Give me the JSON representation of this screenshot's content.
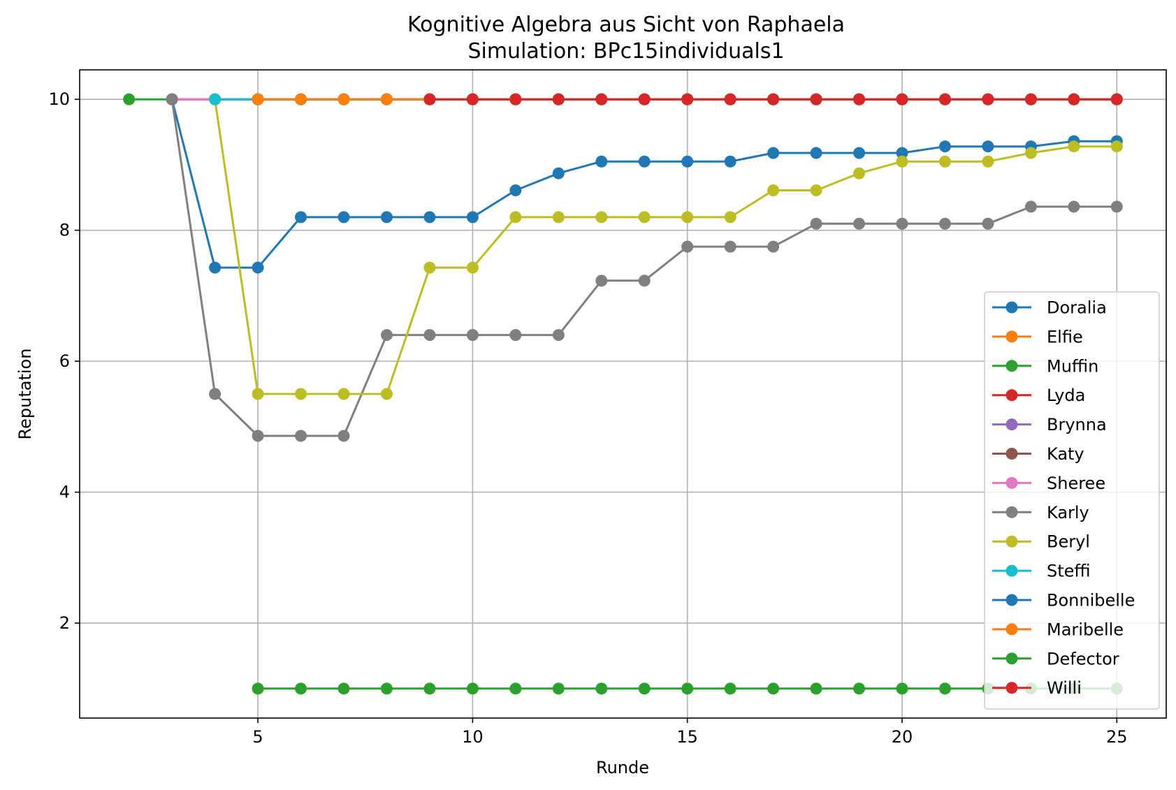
{
  "chart_data": {
    "type": "line",
    "title": "Kognitive Algebra aus Sicht von Raphaela",
    "subtitle": "Simulation: BPc15individuals1",
    "xlabel": "Runde",
    "ylabel": "Reputation",
    "xlim": [
      0.85,
      26.15
    ],
    "ylim": [
      0.55,
      10.45
    ],
    "xticks": [
      5,
      10,
      15,
      20,
      25
    ],
    "yticks": [
      2,
      4,
      6,
      8,
      10
    ],
    "grid": true,
    "legend_position": "lower-right",
    "series": [
      {
        "name": "Doralia",
        "color": "#1f77b4",
        "x": [
          3,
          4,
          5,
          6,
          7,
          8,
          9,
          10,
          11,
          12,
          13,
          14,
          15,
          16,
          17,
          18,
          19,
          20,
          21,
          22,
          23,
          24,
          25
        ],
        "y": [
          10,
          7.43,
          7.43,
          8.2,
          8.2,
          8.2,
          8.2,
          8.2,
          8.61,
          8.87,
          9.05,
          9.05,
          9.05,
          9.05,
          9.18,
          9.18,
          9.18,
          9.18,
          9.28,
          9.28,
          9.28,
          9.36,
          9.36
        ]
      },
      {
        "name": "Elfie",
        "color": "#ff7f0e",
        "x": [
          5,
          6,
          7,
          8,
          9,
          10,
          11,
          12,
          13,
          14,
          15,
          16,
          17,
          18,
          19,
          20,
          21,
          22,
          23,
          24,
          25
        ],
        "y": [
          10,
          10,
          10,
          10,
          10,
          10,
          10,
          10,
          10,
          10,
          10,
          10,
          10,
          10,
          10,
          10,
          10,
          10,
          10,
          10,
          10
        ]
      },
      {
        "name": "Muffin",
        "color": "#2ca02c",
        "x": [
          2,
          3
        ],
        "y": [
          10,
          10
        ]
      },
      {
        "name": "Lyda",
        "color": "#d62728",
        "x": [
          9,
          10,
          11,
          12,
          13,
          14,
          15,
          16,
          17,
          18,
          19,
          20,
          21,
          22,
          23,
          24,
          25
        ],
        "y": [
          10,
          10,
          10,
          10,
          10,
          10,
          10,
          10,
          10,
          10,
          10,
          10,
          10,
          10,
          10,
          10,
          10
        ]
      },
      {
        "name": "Brynna",
        "color": "#9467bd",
        "x": [
          3,
          4,
          5,
          6,
          7,
          8,
          9,
          10,
          11,
          12,
          13,
          14,
          15,
          16,
          17,
          18,
          19,
          20,
          21,
          22,
          23,
          24,
          25
        ],
        "y": [
          10,
          10,
          10,
          10,
          10,
          10,
          10,
          10,
          10,
          10,
          10,
          10,
          10,
          10,
          10,
          10,
          10,
          10,
          10,
          10,
          10,
          10,
          10
        ]
      },
      {
        "name": "Katy",
        "color": "#8c564b",
        "x": [
          3,
          4,
          5,
          6,
          7,
          8,
          9,
          10,
          11,
          12,
          13,
          14,
          15,
          16,
          17,
          18,
          19,
          20,
          21,
          22,
          23,
          24,
          25
        ],
        "y": [
          10,
          10,
          10,
          10,
          10,
          10,
          10,
          10,
          10,
          10,
          10,
          10,
          10,
          10,
          10,
          10,
          10,
          10,
          10,
          10,
          10,
          10,
          10
        ]
      },
      {
        "name": "Sheree",
        "color": "#e377c2",
        "x": [
          3,
          4,
          5,
          6,
          7,
          8,
          9,
          10,
          11,
          12,
          13,
          14,
          15,
          16,
          17,
          18,
          19,
          20,
          21,
          22,
          23,
          24,
          25
        ],
        "y": [
          10,
          10,
          10,
          10,
          10,
          10,
          10,
          10,
          10,
          10,
          10,
          10,
          10,
          10,
          10,
          10,
          10,
          10,
          10,
          10,
          10,
          10,
          10
        ]
      },
      {
        "name": "Karly",
        "color": "#7f7f7f",
        "x": [
          3,
          4,
          5,
          6,
          7,
          8,
          9,
          10,
          11,
          12,
          13,
          14,
          15,
          16,
          17,
          18,
          19,
          20,
          21,
          22,
          23,
          24,
          25
        ],
        "y": [
          10,
          5.5,
          4.86,
          4.86,
          4.86,
          6.4,
          6.4,
          6.4,
          6.4,
          6.4,
          7.23,
          7.23,
          7.75,
          7.75,
          7.75,
          8.1,
          8.1,
          8.1,
          8.1,
          8.1,
          8.36,
          8.36,
          8.36
        ]
      },
      {
        "name": "Beryl",
        "color": "#bcbd22",
        "x": [
          4,
          5,
          6,
          7,
          8,
          9,
          10,
          11,
          12,
          13,
          14,
          15,
          16,
          17,
          18,
          19,
          20,
          21,
          22,
          23,
          24,
          25
        ],
        "y": [
          10,
          5.5,
          5.5,
          5.5,
          5.5,
          7.43,
          7.43,
          8.2,
          8.2,
          8.2,
          8.2,
          8.2,
          8.2,
          8.61,
          8.61,
          8.87,
          9.05,
          9.05,
          9.05,
          9.18,
          9.28,
          9.28
        ]
      },
      {
        "name": "Steffi",
        "color": "#17becf",
        "x": [
          4,
          5,
          6,
          7,
          8,
          9,
          10,
          11,
          12,
          13,
          14,
          15,
          16,
          17,
          18,
          19,
          20,
          21,
          22,
          23,
          24,
          25
        ],
        "y": [
          10,
          10,
          10,
          10,
          10,
          10,
          10,
          10,
          10,
          10,
          10,
          10,
          10,
          10,
          10,
          10,
          10,
          10,
          10,
          10,
          10,
          10
        ]
      },
      {
        "name": "Bonnibelle",
        "color": "#1f77b4",
        "x": [
          5,
          6,
          7,
          8,
          9,
          10,
          11,
          12,
          13,
          14,
          15,
          16,
          17,
          18,
          19,
          20,
          21,
          22,
          23,
          24,
          25
        ],
        "y": [
          10,
          10,
          10,
          10,
          10,
          10,
          10,
          10,
          10,
          10,
          10,
          10,
          10,
          10,
          10,
          10,
          10,
          10,
          10,
          10,
          10
        ]
      },
      {
        "name": "Maribelle",
        "color": "#ff7f0e",
        "x": [
          5,
          6,
          7,
          8,
          9,
          10,
          11,
          12,
          13,
          14,
          15,
          16,
          17,
          18,
          19,
          20,
          21,
          22,
          23,
          24,
          25
        ],
        "y": [
          10,
          10,
          10,
          10,
          10,
          10,
          10,
          10,
          10,
          10,
          10,
          10,
          10,
          10,
          10,
          10,
          10,
          10,
          10,
          10,
          10
        ]
      },
      {
        "name": "Defector",
        "color": "#2ca02c",
        "x": [
          5,
          6,
          7,
          8,
          9,
          10,
          11,
          12,
          13,
          14,
          15,
          16,
          17,
          18,
          19,
          20,
          21,
          22,
          23,
          24,
          25
        ],
        "y": [
          1,
          1,
          1,
          1,
          1,
          1,
          1,
          1,
          1,
          1,
          1,
          1,
          1,
          1,
          1,
          1,
          1,
          1,
          1,
          1,
          1
        ]
      },
      {
        "name": "Willi",
        "color": "#d62728",
        "x": [
          9,
          10,
          11,
          12,
          13,
          14,
          15,
          16,
          17,
          18,
          19,
          20,
          21,
          22,
          23,
          24,
          25
        ],
        "y": [
          10,
          10,
          10,
          10,
          10,
          10,
          10,
          10,
          10,
          10,
          10,
          10,
          10,
          10,
          10,
          10,
          10
        ]
      }
    ]
  }
}
